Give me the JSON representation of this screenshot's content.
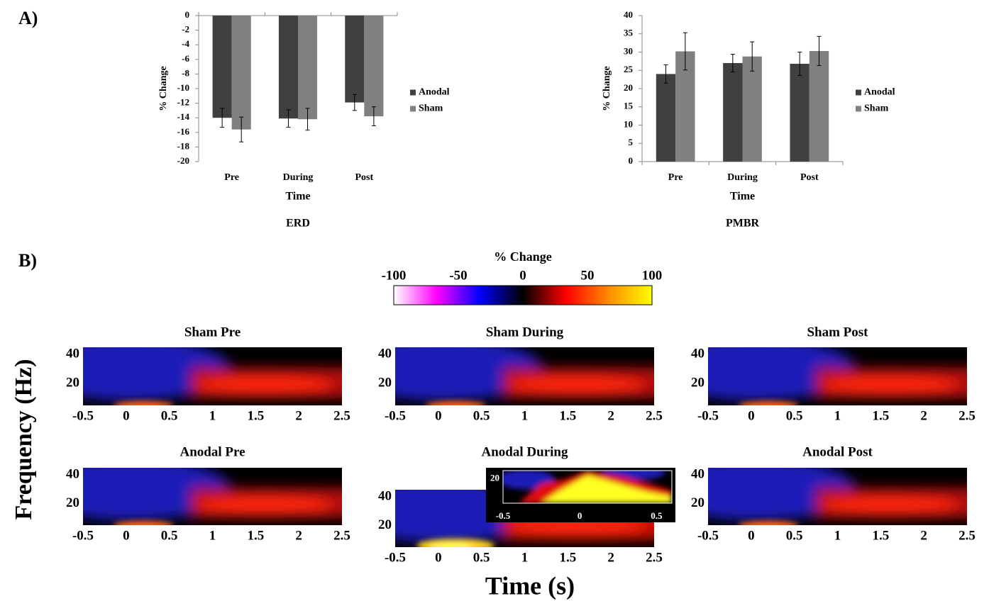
{
  "panel_labels": [
    "A)",
    "B)"
  ],
  "figure": {
    "ylabel": "Frequency (Hz)",
    "xlabel": "Time (s)"
  },
  "chart_data": [
    {
      "type": "bar",
      "title": "ERD",
      "xlabel": "Time",
      "ylabel": "% Change",
      "categories": [
        "Pre",
        "During",
        "Post"
      ],
      "series": [
        {
          "name": "Anodal",
          "color": "#404040",
          "values": [
            -14,
            -14.1,
            -11.9
          ],
          "errors": [
            1.3,
            1.2,
            1.1
          ]
        },
        {
          "name": "Sham",
          "color": "#808080",
          "values": [
            -15.6,
            -14.2,
            -13.8
          ],
          "errors": [
            1.7,
            1.5,
            1.3
          ]
        }
      ],
      "ylim": [
        -20,
        0
      ],
      "yticks": [
        0,
        -2,
        -4,
        -6,
        -8,
        -10,
        -12,
        -14,
        -16,
        -18,
        -20
      ],
      "legend": "right"
    },
    {
      "type": "bar",
      "title": "PMBR",
      "xlabel": "Time",
      "ylabel": "% Change",
      "categories": [
        "Pre",
        "During",
        "Post"
      ],
      "series": [
        {
          "name": "Anodal",
          "color": "#404040",
          "values": [
            24,
            27,
            26.8
          ],
          "errors": [
            2.5,
            2.4,
            3.2
          ]
        },
        {
          "name": "Sham",
          "color": "#808080",
          "values": [
            30.2,
            28.8,
            30.3
          ],
          "errors": [
            5.1,
            4,
            4
          ]
        }
      ],
      "ylim": [
        0,
        40
      ],
      "yticks": [
        0,
        5,
        10,
        15,
        20,
        25,
        30,
        35,
        40
      ],
      "legend": "right"
    },
    {
      "type": "colorbar",
      "title": "% Change",
      "xlim": [
        -100,
        100
      ],
      "xticks": [
        -100,
        -50,
        0,
        50,
        100
      ],
      "colors": [
        "#ffffff",
        "#ff00ff",
        "#0000ff",
        "#000000",
        "#ff0000",
        "#ff8c00",
        "#ffff00"
      ]
    },
    {
      "type": "heatmap",
      "title": "Sham Pre",
      "xlim": [
        -0.5,
        2.5
      ],
      "xticks": [
        -0.5,
        0,
        0.5,
        1,
        1.5,
        2,
        2.5
      ],
      "ylim": [
        5,
        45
      ],
      "yticks": [
        20,
        40
      ]
    },
    {
      "type": "heatmap",
      "title": "Sham During",
      "xlim": [
        -0.5,
        2.5
      ],
      "xticks": [
        -0.5,
        0,
        0.5,
        1,
        1.5,
        2,
        2.5
      ],
      "ylim": [
        5,
        45
      ],
      "yticks": [
        20,
        40
      ]
    },
    {
      "type": "heatmap",
      "title": "Sham Post",
      "xlim": [
        -0.5,
        2.5
      ],
      "xticks": [
        -0.5,
        0,
        0.5,
        1,
        1.5,
        2,
        2.5
      ],
      "ylim": [
        5,
        45
      ],
      "yticks": [
        20,
        40
      ]
    },
    {
      "type": "heatmap",
      "title": "Anodal Pre",
      "xlim": [
        -0.5,
        2.5
      ],
      "xticks": [
        -0.5,
        0,
        0.5,
        1,
        1.5,
        2,
        2.5
      ],
      "ylim": [
        5,
        45
      ],
      "yticks": [
        20,
        40
      ]
    },
    {
      "type": "heatmap",
      "title": "Anodal During",
      "xlim": [
        -0.5,
        2.5
      ],
      "xticks": [
        -0.5,
        0,
        0.5,
        1,
        1.5,
        2,
        2.5
      ],
      "ylim": [
        5,
        45
      ],
      "yticks": [
        20,
        40
      ],
      "inset": {
        "xlim": [
          -0.5,
          0.6
        ],
        "xticks": [
          -0.5,
          0,
          0.5
        ],
        "ylim": [
          10,
          25
        ],
        "yticks": [
          20
        ]
      }
    },
    {
      "type": "heatmap",
      "title": "Anodal Post",
      "xlim": [
        -0.5,
        2.5
      ],
      "xticks": [
        -0.5,
        0,
        0.5,
        1,
        1.5,
        2,
        2.5
      ],
      "ylim": [
        5,
        45
      ],
      "yticks": [
        20,
        40
      ]
    }
  ]
}
